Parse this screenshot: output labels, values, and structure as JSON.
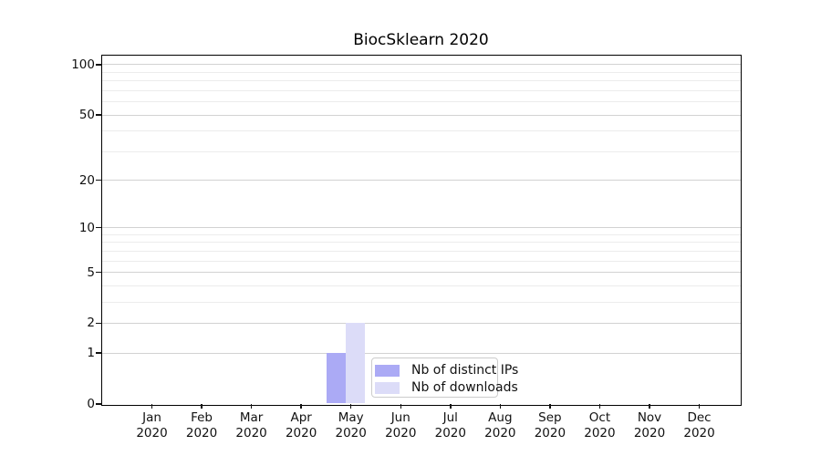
{
  "chart_data": {
    "type": "bar",
    "title": "BiocSklearn 2020",
    "xlabel": "",
    "ylabel": "",
    "categories": [
      "Jan 2020",
      "Feb 2020",
      "Mar 2020",
      "Apr 2020",
      "May 2020",
      "Jun 2020",
      "Jul 2020",
      "Aug 2020",
      "Sep 2020",
      "Oct 2020",
      "Nov 2020",
      "Dec 2020"
    ],
    "series": [
      {
        "name": "Nb of distinct IPs",
        "color": "#abaaf5",
        "values": [
          0,
          0,
          0,
          0,
          1,
          0,
          0,
          0,
          0,
          0,
          0,
          0
        ]
      },
      {
        "name": "Nb of downloads",
        "color": "#dcdcf8",
        "values": [
          0,
          0,
          0,
          0,
          2,
          0,
          0,
          0,
          0,
          0,
          0,
          0
        ]
      }
    ],
    "yscale": "log1p",
    "ylim": [
      0,
      113
    ],
    "y_ticks": [
      0,
      1,
      2,
      5,
      10,
      20,
      50,
      100
    ],
    "y_minor_ticks": [
      3,
      4,
      6,
      7,
      8,
      9,
      30,
      40,
      60,
      70,
      80,
      90
    ],
    "grid": true,
    "legend_position": "lower center",
    "colors": {
      "major_grid": "#d2d2d2",
      "minor_grid": "#ececec",
      "spine": "#000000",
      "legend_border": "#cccccc"
    }
  }
}
